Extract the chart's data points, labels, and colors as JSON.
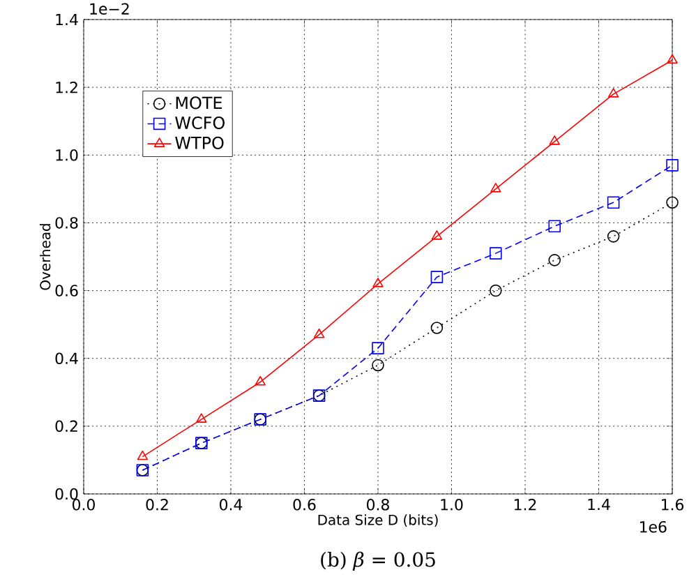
{
  "chart_data": {
    "type": "line",
    "title": "(b) *β* = 0.05",
    "xlabel": "Data Size D (bits)",
    "ylabel": "Overhead",
    "x": [
      0.16,
      0.32,
      0.48,
      0.64,
      0.8,
      0.96,
      1.12,
      1.28,
      1.44,
      1.6
    ],
    "series": [
      {
        "name": "MOTE",
        "color": "#000000",
        "marker": "circle",
        "line_style": "dotted",
        "values": [
          0.07,
          0.15,
          0.22,
          0.29,
          0.38,
          0.49,
          0.6,
          0.69,
          0.76,
          0.86
        ]
      },
      {
        "name": "WCFO",
        "color": "#0000ff",
        "marker": "square",
        "line_style": "dashed",
        "values": [
          0.07,
          0.15,
          0.22,
          0.29,
          0.43,
          0.64,
          0.71,
          0.79,
          0.86,
          0.97
        ]
      },
      {
        "name": "WTPO",
        "color": "#ff0000",
        "marker": "triangle",
        "line_style": "solid",
        "values": [
          0.11,
          0.22,
          0.33,
          0.47,
          0.62,
          0.76,
          0.9,
          1.04,
          1.18,
          1.28
        ]
      }
    ],
    "xlim": [
      0,
      1.6
    ],
    "ylim": [
      0,
      1.4
    ],
    "xticks": [
      {
        "value": 0,
        "label": "0.0"
      },
      0.2,
      0.4,
      0.6,
      0.8,
      {
        "value": 1,
        "label": "1.0"
      },
      1.2,
      1.4,
      1.6
    ],
    "yticks": [
      {
        "value": 0,
        "label": "0.0"
      },
      0.2,
      0.4,
      0.6,
      0.8,
      {
        "value": 1,
        "label": "1.0"
      },
      1.2,
      1.4
    ],
    "annotations": [
      "1e−2",
      "1e6"
    ],
    "grid": true,
    "legend": "top left"
  }
}
